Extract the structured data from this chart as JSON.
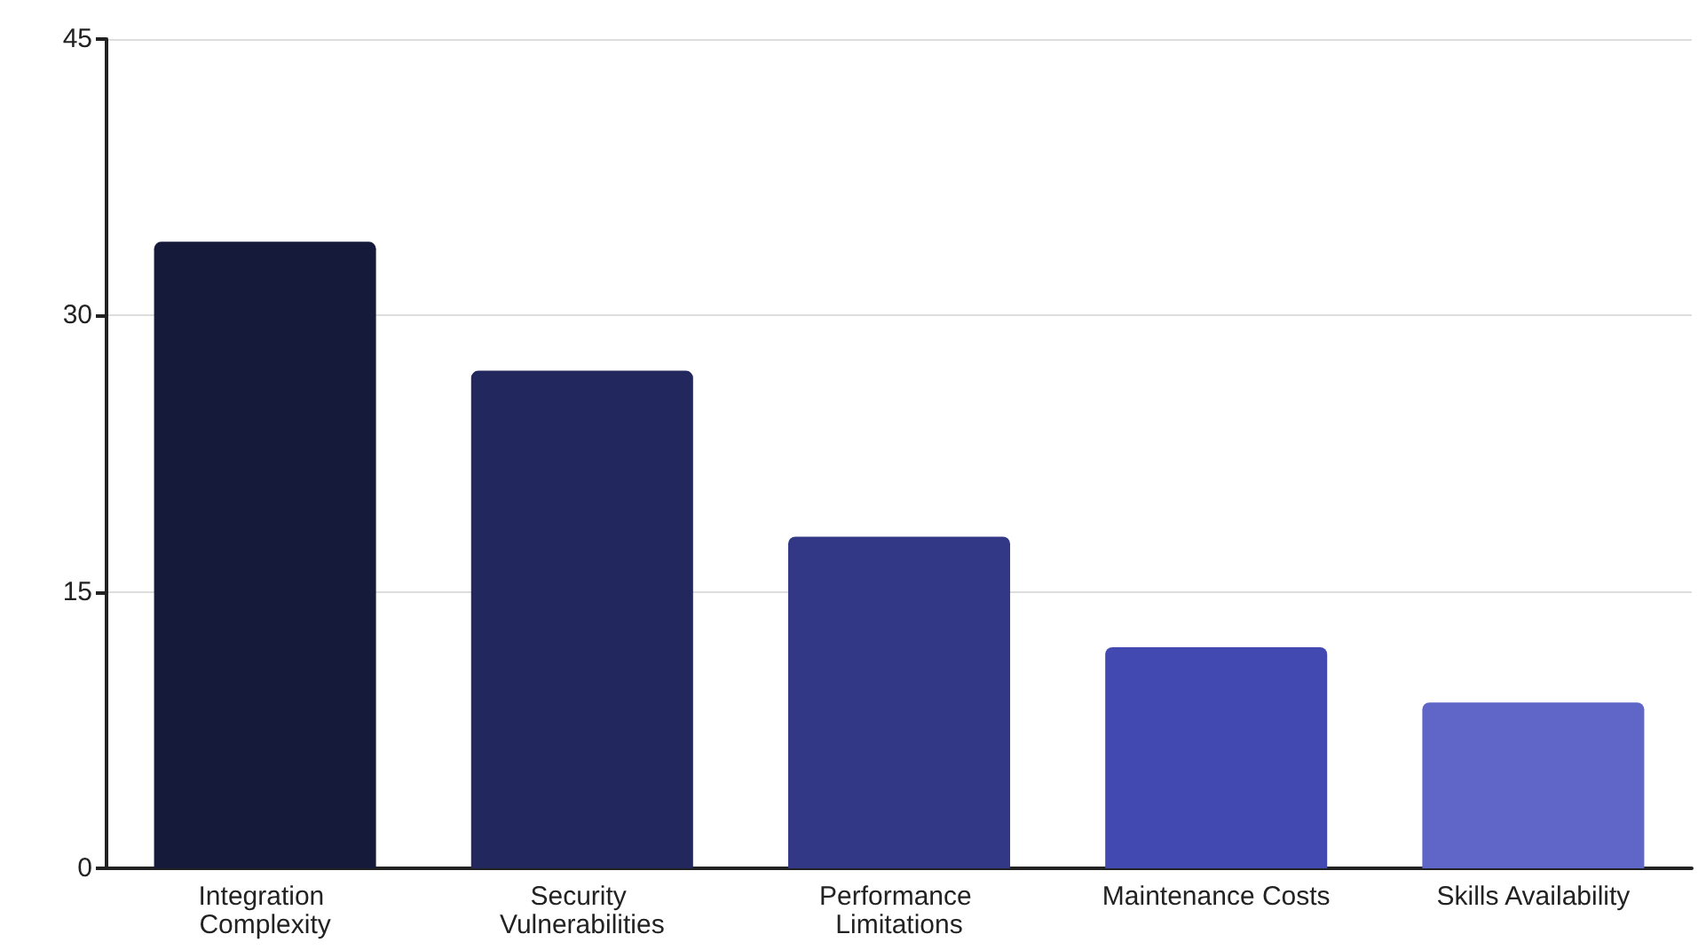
{
  "chart_data": {
    "type": "bar",
    "categories": [
      "Integration Complexity",
      "Security Vulnerabilities",
      "Performance Limitations",
      "Maintenance Costs",
      "Skills Availability"
    ],
    "values": [
      34,
      27,
      18,
      12,
      9
    ],
    "colors": [
      "#161a3a",
      "#22275e",
      "#323786",
      "#4249b0",
      "#6066c8"
    ],
    "ylim": [
      0,
      45
    ],
    "yticks": [
      0,
      15,
      30,
      45
    ],
    "grid": "y"
  }
}
